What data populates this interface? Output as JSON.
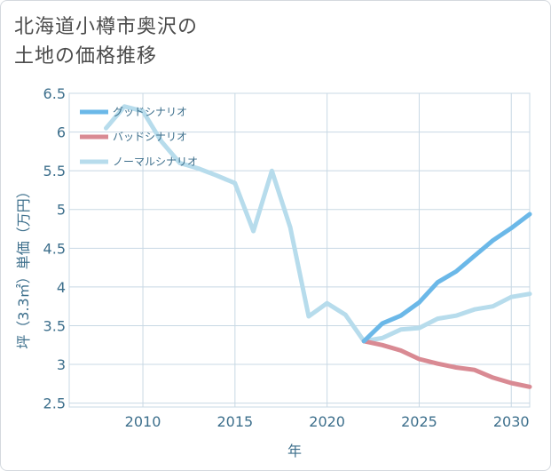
{
  "title_line1": "北海道小樽市奥沢の",
  "title_line2": "土地の価格推移",
  "chart_data": {
    "type": "line",
    "xlabel": "年",
    "ylabel": "坪（3.3㎡）単価（万円）",
    "xlim": [
      2006,
      2031
    ],
    "ylim": [
      2.45,
      6.5
    ],
    "x_ticks": [
      2010,
      2015,
      2020,
      2025,
      2030
    ],
    "y_ticks": [
      2.5,
      3,
      3.5,
      4,
      4.5,
      5,
      5.5,
      6,
      6.5
    ],
    "grid": true,
    "legend_position": "top-left",
    "series": [
      {
        "name": "グッドシナリオ",
        "color": "#6bb8e8",
        "x": [
          2022,
          2023,
          2024,
          2025,
          2026,
          2027,
          2028,
          2029,
          2030,
          2031
        ],
        "values": [
          3.3,
          3.53,
          3.63,
          3.8,
          4.06,
          4.2,
          4.4,
          4.6,
          4.76,
          4.94
        ]
      },
      {
        "name": "バッドシナリオ",
        "color": "#d98a93",
        "x": [
          2022,
          2023,
          2024,
          2025,
          2026,
          2027,
          2028,
          2029,
          2030,
          2031
        ],
        "values": [
          3.3,
          3.25,
          3.18,
          3.07,
          3.01,
          2.96,
          2.93,
          2.83,
          2.76,
          2.71
        ]
      },
      {
        "name": "ノーマルシナリオ",
        "color": "#b7dcec",
        "x": [
          2008,
          2009,
          2010,
          2011,
          2012,
          2013,
          2014,
          2015,
          2016,
          2017,
          2018,
          2019,
          2020,
          2021,
          2022,
          2023,
          2024,
          2025,
          2026,
          2027,
          2028,
          2029,
          2030,
          2031
        ],
        "values": [
          6.05,
          6.33,
          6.27,
          5.88,
          5.6,
          5.53,
          5.44,
          5.34,
          4.72,
          5.5,
          4.77,
          3.62,
          3.79,
          3.64,
          3.3,
          3.34,
          3.45,
          3.47,
          3.59,
          3.63,
          3.71,
          3.75,
          3.87,
          3.91
        ]
      }
    ]
  }
}
